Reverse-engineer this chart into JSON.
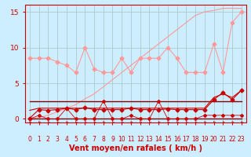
{
  "bg_color": "#cceeff",
  "grid_color": "#aacccc",
  "xlabel": "Vent moyen/en rafales ( km/h )",
  "xlabel_color": "#cc0000",
  "xlabel_fontsize": 7,
  "tick_color": "#cc0000",
  "ylim": [
    -0.5,
    16
  ],
  "xlim": [
    -0.5,
    23.5
  ],
  "yticks": [
    0,
    5,
    10,
    15
  ],
  "xticks": [
    0,
    1,
    2,
    3,
    4,
    5,
    6,
    7,
    8,
    9,
    10,
    11,
    12,
    13,
    14,
    15,
    16,
    17,
    18,
    19,
    20,
    21,
    22,
    23
  ],
  "x": [
    0,
    1,
    2,
    3,
    4,
    5,
    6,
    7,
    8,
    9,
    10,
    11,
    12,
    13,
    14,
    15,
    16,
    17,
    18,
    19,
    20,
    21,
    22,
    23
  ],
  "line1_y": [
    8.5,
    8.5,
    8.5,
    8.0,
    7.5,
    6.5,
    10.0,
    7.0,
    6.5,
    6.5,
    8.5,
    6.5,
    8.5,
    8.5,
    8.5,
    10.0,
    8.5,
    6.5,
    6.5,
    6.5,
    10.5,
    6.5,
    13.5,
    15.0
  ],
  "line1_color": "#ff9999",
  "line2_y": [
    0.0,
    0.2,
    0.5,
    1.0,
    1.5,
    2.0,
    2.8,
    3.5,
    4.5,
    5.5,
    6.5,
    7.5,
    8.5,
    9.5,
    10.5,
    11.5,
    12.5,
    13.5,
    14.5,
    15.0,
    15.2,
    15.5,
    15.5,
    15.5
  ],
  "line2_color": "#ff9999",
  "line3_y": [
    2.5,
    2.5,
    2.5,
    2.5,
    2.5,
    2.5,
    2.5,
    2.5,
    2.5,
    2.5,
    2.5,
    2.5,
    2.5,
    2.5,
    2.5,
    2.5,
    2.5,
    2.5,
    2.5,
    2.5,
    2.5,
    2.5,
    2.5,
    2.5
  ],
  "line3_color": "#880000",
  "line4_y": [
    0.0,
    0.0,
    0.0,
    0.0,
    0.0,
    0.0,
    0.0,
    0.0,
    0.0,
    0.0,
    0.0,
    0.0,
    0.0,
    0.0,
    0.0,
    0.0,
    0.0,
    0.0,
    0.0,
    0.0,
    0.0,
    0.0,
    0.0,
    0.0
  ],
  "line4_color": "#880000",
  "line5_y": [
    0.1,
    1.3,
    1.2,
    1.3,
    1.5,
    1.3,
    1.6,
    1.3,
    1.3,
    1.3,
    1.3,
    1.5,
    1.3,
    1.3,
    1.3,
    1.4,
    1.3,
    1.3,
    1.3,
    1.3,
    2.7,
    3.7,
    2.7,
    4.0
  ],
  "line5_color": "#cc0000",
  "line6_y": [
    0.0,
    0.5,
    0.0,
    0.0,
    1.5,
    0.0,
    0.0,
    0.0,
    2.5,
    0.0,
    0.0,
    0.5,
    0.0,
    0.0,
    2.5,
    0.0,
    0.0,
    0.0,
    0.0,
    0.5,
    0.5,
    0.5,
    0.5,
    0.5
  ],
  "line6_color": "#cc0000",
  "line6_marker": "D",
  "line6_ms": 2,
  "line7_y": [
    1.2,
    1.5,
    1.5,
    1.5,
    1.5,
    1.5,
    1.5,
    1.5,
    1.5,
    1.5,
    1.5,
    1.5,
    1.5,
    1.5,
    1.5,
    1.5,
    1.5,
    1.5,
    1.5,
    1.5,
    3.0,
    3.5,
    3.0,
    4.0
  ],
  "line7_color": "#cc0000",
  "arrow_color": "#cc0000"
}
